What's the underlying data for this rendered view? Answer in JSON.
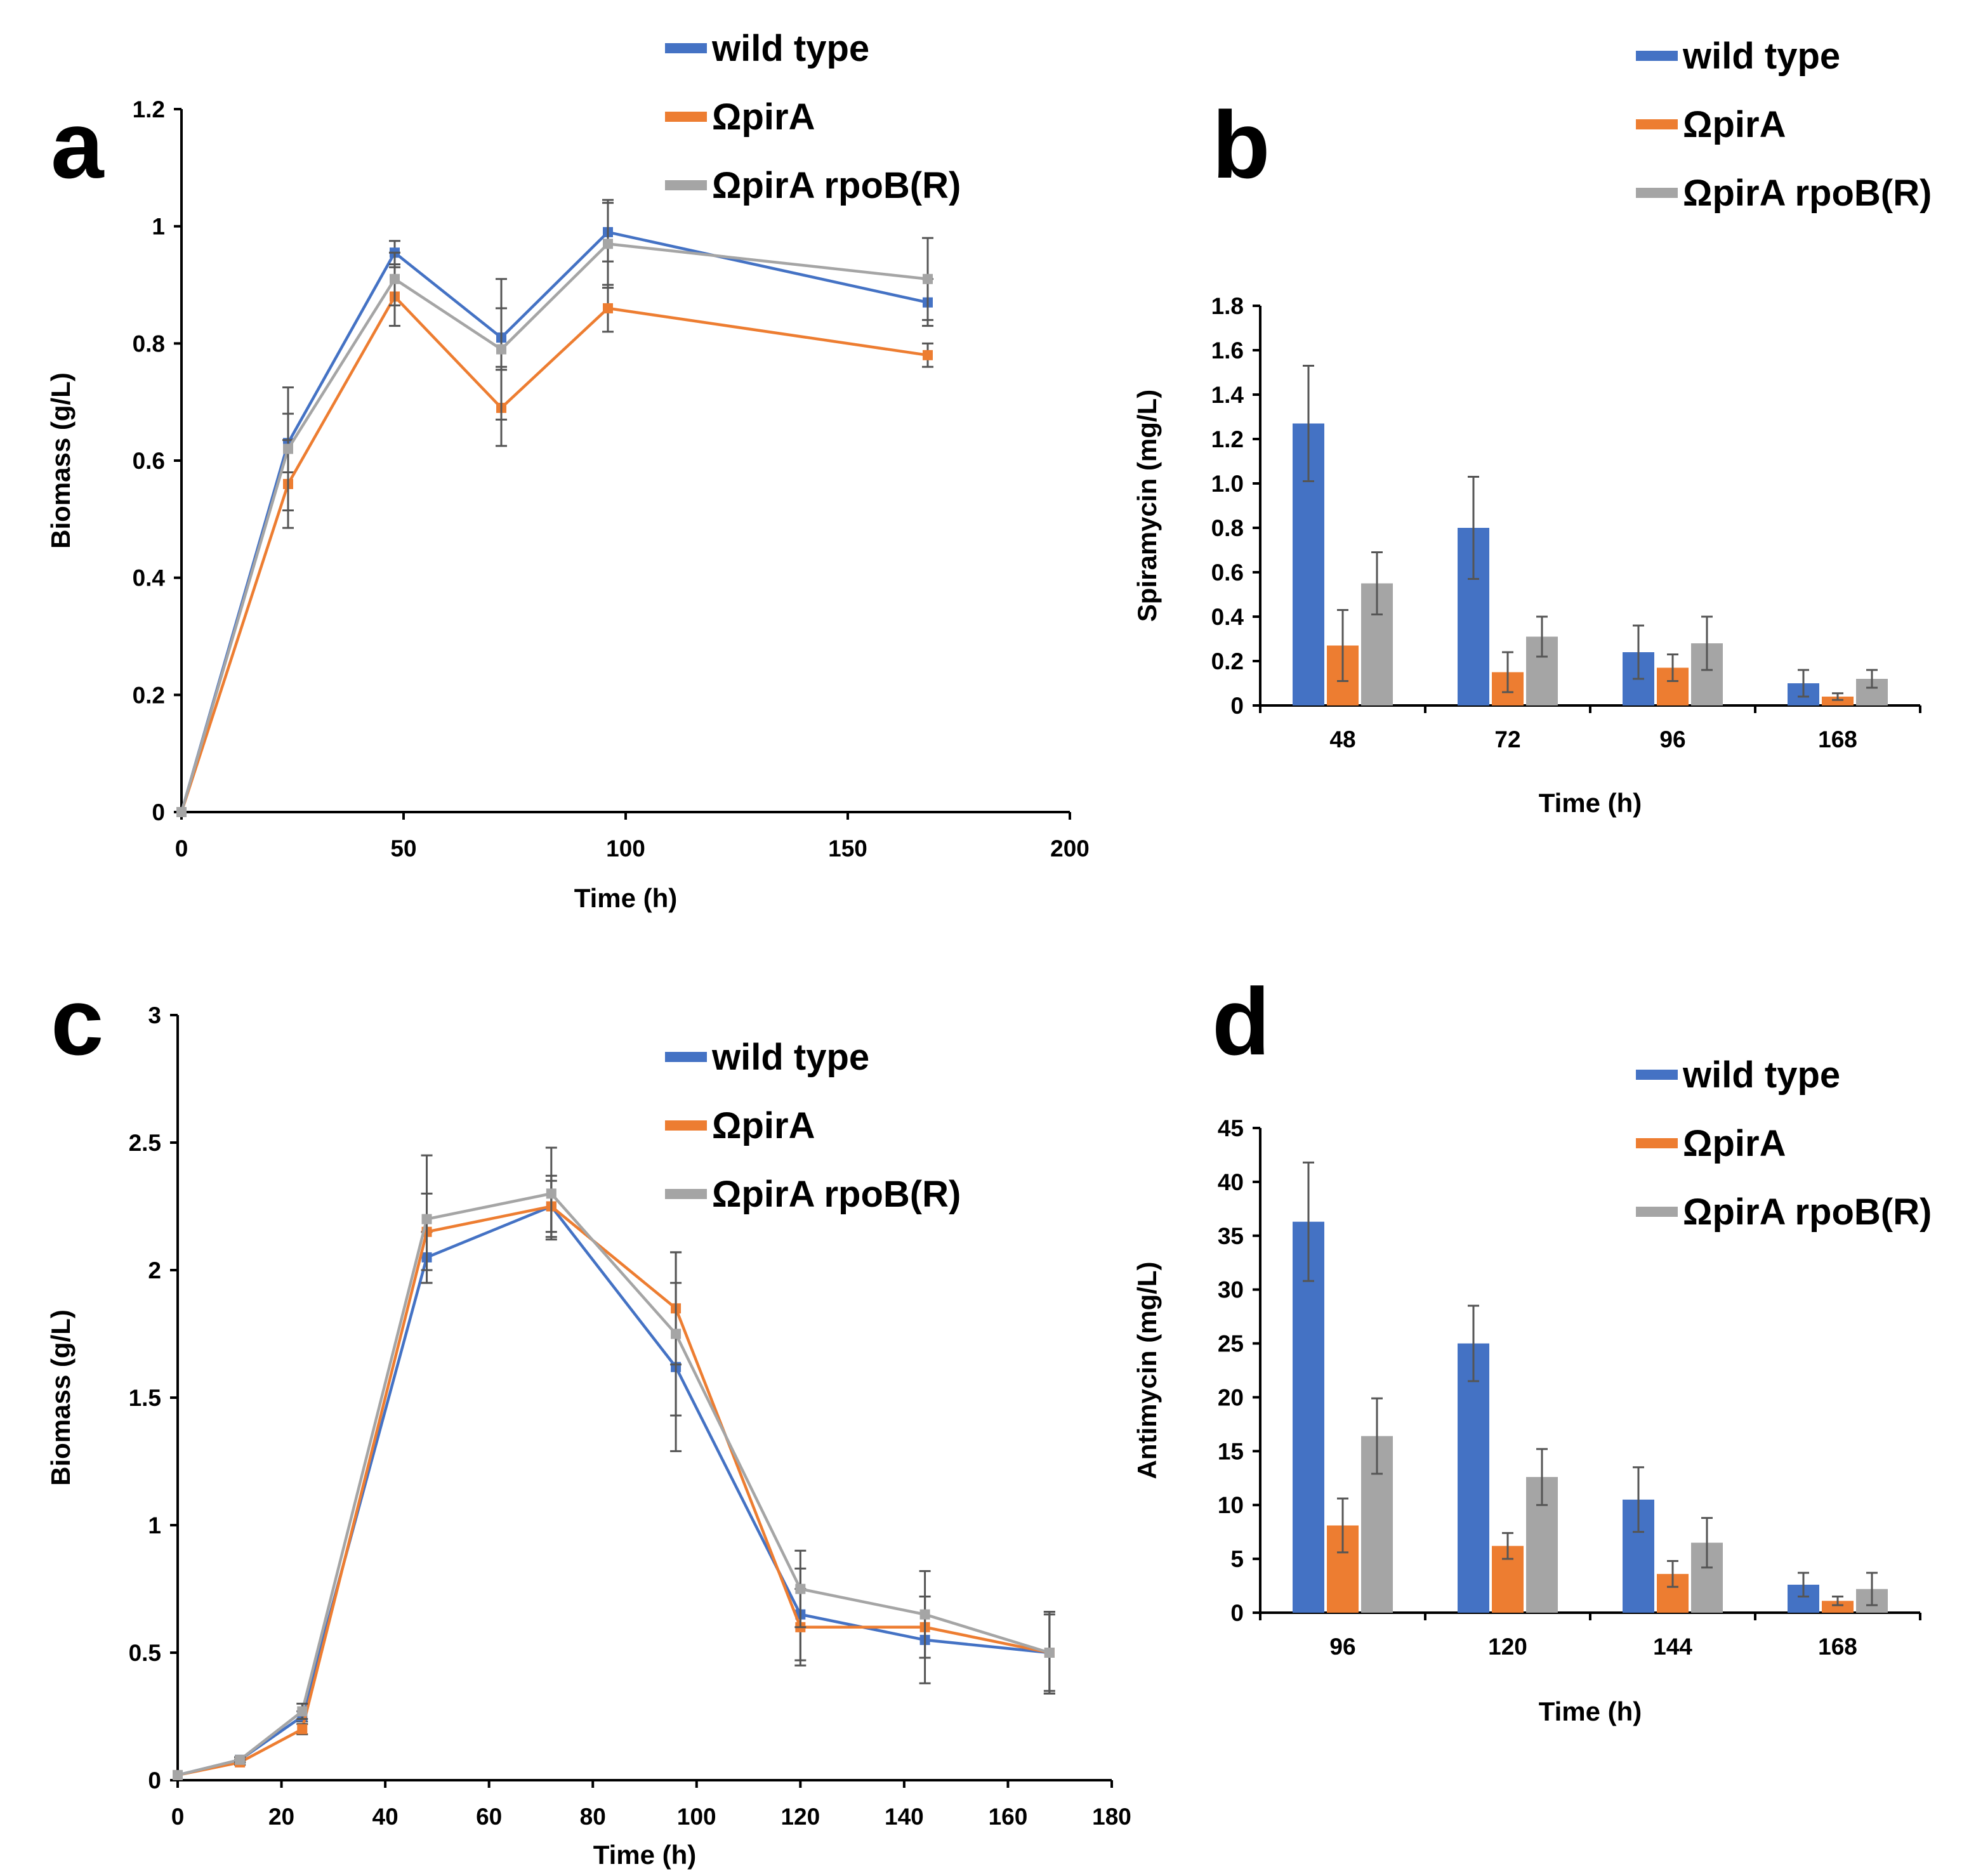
{
  "colors": {
    "wild_type": "#4472C4",
    "pirA": "#ED7D31",
    "pirA_rpoB": "#A5A5A5"
  },
  "chart_data": [
    {
      "panel": "a",
      "type": "line",
      "xlabel": "Time (h)",
      "ylabel": "Biomass (g/L)",
      "xlim": [
        0,
        200
      ],
      "ylim": [
        0,
        1.2
      ],
      "xticks": [
        0,
        50,
        100,
        150,
        200
      ],
      "yticks": [
        0,
        0.2,
        0.4,
        0.6,
        0.8,
        1,
        1.2
      ],
      "xtick_labels": [
        "0",
        "50",
        "100",
        "150",
        "200"
      ],
      "ytick_labels": [
        "0",
        "0.2",
        "0.4",
        "0.6",
        "0.8",
        "1",
        "1.2"
      ],
      "x": [
        0,
        24,
        48,
        72,
        96,
        168
      ],
      "series": [
        {
          "name": "wild type",
          "color_key": "wild_type",
          "values": [
            0,
            0.63,
            0.955,
            0.81,
            0.99,
            0.87
          ],
          "errors": [
            0,
            0.05,
            0.02,
            0.05,
            0.05,
            0.04
          ]
        },
        {
          "name": "ΩpirA",
          "color_key": "pirA",
          "values": [
            0,
            0.56,
            0.88,
            0.69,
            0.86,
            0.78
          ],
          "errors": [
            0,
            0.075,
            0.05,
            0.065,
            0.04,
            0.02
          ]
        },
        {
          "name": "ΩpirA rpoB(R)",
          "color_key": "pirA_rpoB",
          "values": [
            0,
            0.62,
            0.91,
            0.79,
            0.97,
            0.91
          ],
          "errors": [
            0,
            0.105,
            0.045,
            0.12,
            0.075,
            0.07
          ]
        }
      ],
      "legend": [
        "wild type",
        "ΩpirA",
        "ΩpirA rpoB(R)"
      ]
    },
    {
      "panel": "b",
      "type": "bar",
      "xlabel": "Time (h)",
      "ylabel": "Spiramycin (mg/L)",
      "ylim": [
        0,
        1.8
      ],
      "yticks": [
        0,
        0.2,
        0.4,
        0.6,
        0.8,
        1.0,
        1.2,
        1.4,
        1.6,
        1.8
      ],
      "ytick_labels": [
        "0",
        "0.2",
        "0.4",
        "0.6",
        "0.8",
        "1.0",
        "1.2",
        "1.4",
        "1.6",
        "1.8"
      ],
      "categories": [
        "48",
        "72",
        "96",
        "168"
      ],
      "series": [
        {
          "name": "wild type",
          "color_key": "wild_type",
          "values": [
            1.27,
            0.8,
            0.24,
            0.1
          ],
          "errors": [
            0.26,
            0.23,
            0.12,
            0.06
          ]
        },
        {
          "name": "ΩpirA",
          "color_key": "pirA",
          "values": [
            0.27,
            0.15,
            0.17,
            0.04
          ],
          "errors": [
            0.16,
            0.09,
            0.06,
            0.015
          ]
        },
        {
          "name": "ΩpirA rpoB(R)",
          "color_key": "pirA_rpoB",
          "values": [
            0.55,
            0.31,
            0.28,
            0.12
          ],
          "errors": [
            0.14,
            0.09,
            0.12,
            0.04
          ]
        }
      ],
      "legend": [
        "wild type",
        "ΩpirA",
        "ΩpirA rpoB(R)"
      ]
    },
    {
      "panel": "c",
      "type": "line",
      "xlabel": "Time (h)",
      "ylabel": "Biomass (g/L)",
      "xlim": [
        0,
        180
      ],
      "ylim": [
        0,
        3
      ],
      "xticks": [
        0,
        20,
        40,
        60,
        80,
        100,
        120,
        140,
        160,
        180
      ],
      "yticks": [
        0,
        0.5,
        1,
        1.5,
        2,
        2.5,
        3
      ],
      "xtick_labels": [
        "0",
        "20",
        "40",
        "60",
        "80",
        "100",
        "120",
        "140",
        "160",
        "180"
      ],
      "ytick_labels": [
        "0",
        "0.5",
        "1",
        "1.5",
        "2",
        "2.5",
        "3"
      ],
      "x": [
        0,
        12,
        24,
        48,
        72,
        96,
        120,
        144,
        168
      ],
      "series": [
        {
          "name": "wild type",
          "color_key": "wild_type",
          "values": [
            0.02,
            0.08,
            0.25,
            2.05,
            2.25,
            1.62,
            0.65,
            0.55,
            0.5
          ],
          "errors": [
            0,
            0.01,
            0.02,
            0.1,
            0.12,
            0.33,
            0.18,
            0.17,
            0.16
          ]
        },
        {
          "name": "ΩpirA",
          "color_key": "pirA",
          "values": [
            0.02,
            0.07,
            0.2,
            2.15,
            2.25,
            1.85,
            0.6,
            0.6,
            0.5
          ],
          "errors": [
            0,
            0.01,
            0.02,
            0.15,
            0.1,
            0.22,
            0.15,
            0.12,
            0.15
          ]
        },
        {
          "name": "ΩpirA rpoB(R)",
          "color_key": "pirA_rpoB",
          "values": [
            0.02,
            0.08,
            0.27,
            2.2,
            2.3,
            1.75,
            0.75,
            0.65,
            0.5
          ],
          "errors": [
            0,
            0.01,
            0.03,
            0.25,
            0.18,
            0.32,
            0.15,
            0.17,
            0.16
          ]
        }
      ],
      "legend": [
        "wild type",
        "ΩpirA",
        "ΩpirA rpoB(R)"
      ]
    },
    {
      "panel": "d",
      "type": "bar",
      "xlabel": "Time (h)",
      "ylabel": "Antimycin (mg/L)",
      "ylim": [
        0,
        45
      ],
      "yticks": [
        0,
        5,
        10,
        15,
        20,
        25,
        30,
        35,
        40,
        45
      ],
      "ytick_labels": [
        "0",
        "5",
        "10",
        "15",
        "20",
        "25",
        "30",
        "35",
        "40",
        "45"
      ],
      "categories": [
        "96",
        "120",
        "144",
        "168"
      ],
      "series": [
        {
          "name": "wild type",
          "color_key": "wild_type",
          "values": [
            36.3,
            25.0,
            10.5,
            2.6
          ],
          "errors": [
            5.5,
            3.5,
            3.0,
            1.1
          ]
        },
        {
          "name": "ΩpirA",
          "color_key": "pirA",
          "values": [
            8.1,
            6.2,
            3.6,
            1.1
          ],
          "errors": [
            2.5,
            1.2,
            1.2,
            0.4
          ]
        },
        {
          "name": "ΩpirA rpoB(R)",
          "color_key": "pirA_rpoB",
          "values": [
            16.4,
            12.6,
            6.5,
            2.2
          ],
          "errors": [
            3.5,
            2.6,
            2.3,
            1.5
          ]
        }
      ],
      "legend": [
        "wild type",
        "ΩpirA",
        "ΩpirA rpoB(R)"
      ]
    }
  ]
}
